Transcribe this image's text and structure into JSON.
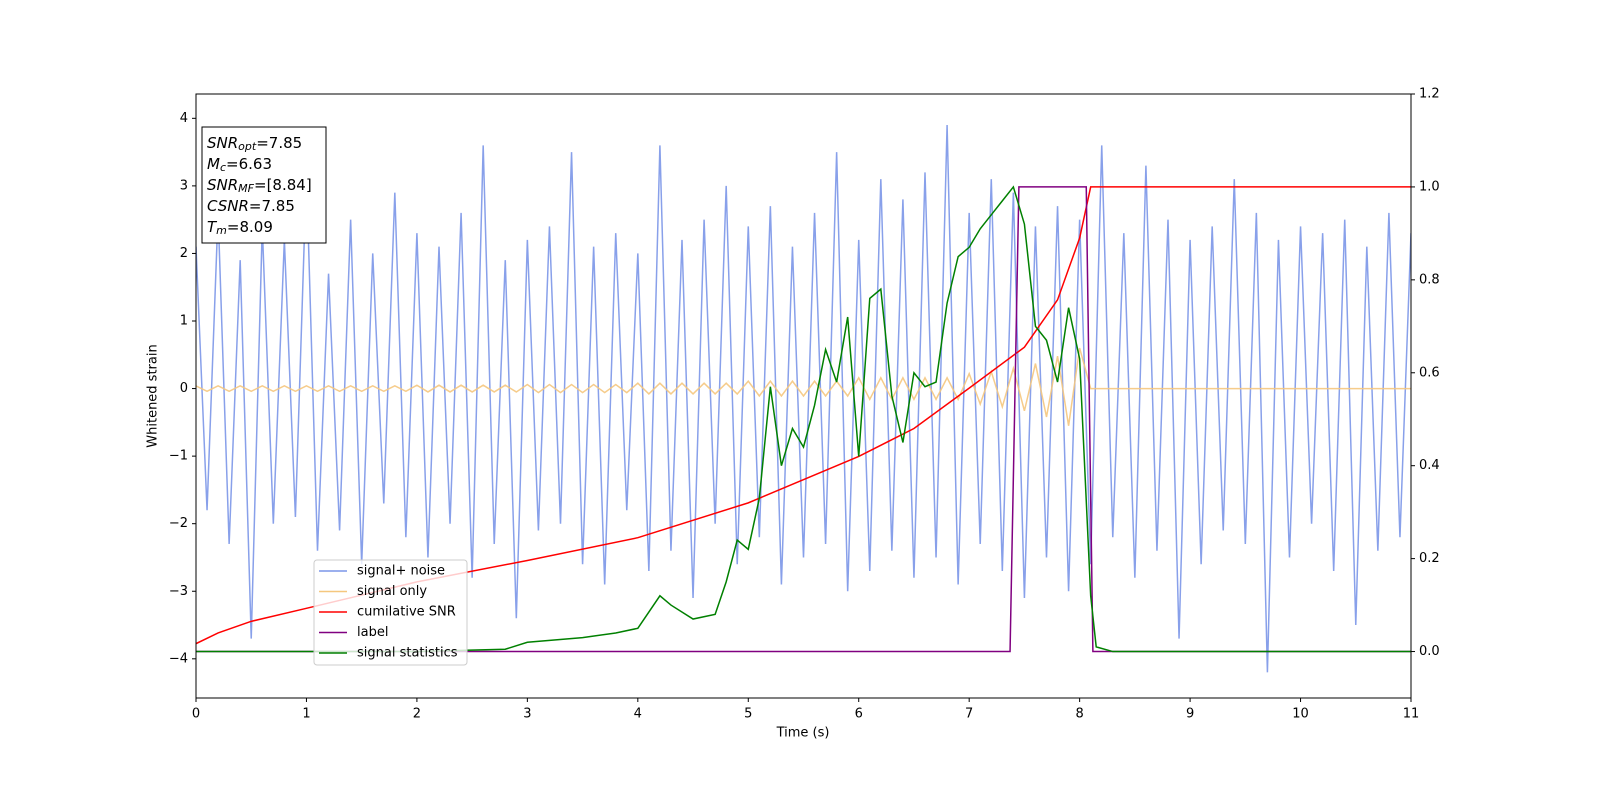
{
  "chart_data": {
    "type": "line",
    "xlabel": "Time (s)",
    "ylabel": "Whitened strain",
    "xlim": [
      0,
      11
    ],
    "xticks": [
      0,
      1,
      2,
      3,
      4,
      5,
      6,
      7,
      8,
      9,
      10,
      11
    ],
    "ylim": [
      -4.58,
      4.36
    ],
    "yticks": [
      {
        "value": -4,
        "label": "−4"
      },
      {
        "value": -3,
        "label": "−3"
      },
      {
        "value": -2,
        "label": "−2"
      },
      {
        "value": -1,
        "label": "−1"
      },
      0,
      1,
      2,
      3,
      4
    ],
    "y2lim": [
      -0.1,
      1.2
    ],
    "y2ticks": [
      {
        "value": 0,
        "label": "0.0"
      },
      {
        "value": 0.2,
        "label": "0.2"
      },
      {
        "value": 0.4,
        "label": "0.4"
      },
      {
        "value": 0.6,
        "label": "0.6"
      },
      {
        "value": 0.8,
        "label": "0.8"
      },
      {
        "value": 1,
        "label": "1.0"
      },
      {
        "value": 1.2,
        "label": "1.2"
      }
    ],
    "legend": "lower left",
    "annotation": [
      {
        "text": "SNR",
        "sub": "opt",
        "value": "=7.85"
      },
      {
        "text": "M",
        "sub": "c",
        "value": "=6.63"
      },
      {
        "text": "SNR",
        "sub": "MF",
        "value": "=[8.84]"
      },
      {
        "text": "CSNR",
        "value": "=7.85"
      },
      {
        "text": "T",
        "sub": "m",
        "value": "=8.09"
      }
    ],
    "series": [
      {
        "name": "signal+ noise",
        "color": "#7b96e8",
        "x": [
          0,
          0.1,
          0.2,
          0.3,
          0.4,
          0.5,
          0.6,
          0.7,
          0.8,
          0.9,
          1,
          1.1,
          1.2,
          1.3,
          1.4,
          1.5,
          1.6,
          1.7,
          1.8,
          1.9,
          2,
          2.1,
          2.2,
          2.3,
          2.4,
          2.5,
          2.6,
          2.7,
          2.8,
          2.9,
          3,
          3.1,
          3.2,
          3.3,
          3.4,
          3.5,
          3.6,
          3.7,
          3.8,
          3.9,
          4,
          4.1,
          4.2,
          4.3,
          4.4,
          4.5,
          4.6,
          4.7,
          4.8,
          4.9,
          5,
          5.1,
          5.2,
          5.3,
          5.4,
          5.5,
          5.6,
          5.7,
          5.8,
          5.9,
          6,
          6.1,
          6.2,
          6.3,
          6.4,
          6.5,
          6.6,
          6.7,
          6.8,
          6.9,
          7,
          7.1,
          7.2,
          7.3,
          7.4,
          7.5,
          7.6,
          7.7,
          7.8,
          7.9,
          8,
          8.1,
          8.2,
          8.3,
          8.4,
          8.5,
          8.6,
          8.7,
          8.8,
          8.9,
          9,
          9.1,
          9.2,
          9.3,
          9.4,
          9.5,
          9.6,
          9.7,
          9.8,
          9.9,
          10,
          10.1,
          10.2,
          10.3,
          10.4,
          10.5,
          10.6,
          10.7,
          10.8,
          10.9,
          11
        ],
        "values": [
          2.1,
          -1.8,
          2.6,
          -2.3,
          1.9,
          -3.7,
          2.4,
          -2.0,
          2.2,
          -1.9,
          3.2,
          -2.4,
          1.7,
          -2.1,
          2.5,
          -2.6,
          2.0,
          -1.7,
          2.9,
          -2.2,
          2.3,
          -2.5,
          2.1,
          -2.0,
          2.6,
          -2.8,
          3.6,
          -2.3,
          1.9,
          -3.4,
          2.2,
          -2.1,
          2.4,
          -2.0,
          3.5,
          -2.6,
          2.1,
          -2.9,
          2.3,
          -1.8,
          2.0,
          -2.7,
          3.6,
          -2.4,
          2.2,
          -3.1,
          2.5,
          -2.0,
          3.0,
          -2.6,
          2.4,
          -2.2,
          2.7,
          -2.9,
          2.1,
          -2.5,
          2.6,
          -2.3,
          3.5,
          -3.0,
          2.2,
          -2.7,
          3.1,
          -2.4,
          2.8,
          -2.8,
          3.2,
          -2.5,
          3.9,
          -2.9,
          2.6,
          -2.3,
          3.1,
          -2.7,
          2.9,
          -3.1,
          2.4,
          -2.5,
          2.7,
          -3.0,
          2.5,
          -2.6,
          3.6,
          -2.2,
          2.3,
          -2.8,
          3.3,
          -2.4,
          2.5,
          -3.7,
          2.2,
          -2.6,
          2.4,
          -2.1,
          3.1,
          -2.3,
          2.6,
          -4.2,
          2.2,
          -2.5,
          2.4,
          -2.0,
          2.3,
          -2.7,
          2.5,
          -3.5,
          2.1,
          -2.4,
          2.6,
          -2.2,
          2.3
        ]
      },
      {
        "name": "signal only",
        "color": "#f5c77e",
        "x": [
          0,
          0.1,
          0.2,
          0.3,
          0.4,
          0.5,
          0.6,
          0.7,
          0.8,
          0.9,
          1,
          1.1,
          1.2,
          1.3,
          1.4,
          1.5,
          1.6,
          1.7,
          1.8,
          1.9,
          2,
          2.1,
          2.2,
          2.3,
          2.4,
          2.5,
          2.6,
          2.7,
          2.8,
          2.9,
          3,
          3.1,
          3.2,
          3.3,
          3.4,
          3.5,
          3.6,
          3.7,
          3.8,
          3.9,
          4,
          4.1,
          4.2,
          4.3,
          4.4,
          4.5,
          4.6,
          4.7,
          4.8,
          4.9,
          5,
          5.1,
          5.2,
          5.3,
          5.4,
          5.5,
          5.6,
          5.7,
          5.8,
          5.9,
          6,
          6.1,
          6.2,
          6.3,
          6.4,
          6.5,
          6.6,
          6.7,
          6.8,
          6.9,
          7,
          7.1,
          7.2,
          7.3,
          7.4,
          7.5,
          7.6,
          7.7,
          7.8,
          7.9,
          8,
          8.1,
          8.2,
          8.3,
          8.4,
          8.5,
          8.6,
          8.7,
          8.8,
          8.9,
          9,
          9.1,
          9.2,
          9.3,
          9.4,
          9.5,
          9.6,
          9.7,
          9.8,
          9.9,
          10,
          10.1,
          10.2,
          10.3,
          10.4,
          10.5,
          10.6,
          10.7,
          10.8,
          10.9,
          11
        ],
        "values": [
          0.04,
          -0.04,
          0.04,
          -0.04,
          0.04,
          -0.04,
          0.04,
          -0.04,
          0.04,
          -0.04,
          0.04,
          -0.04,
          0.04,
          -0.04,
          0.04,
          -0.04,
          0.04,
          -0.04,
          0.04,
          -0.04,
          0.05,
          -0.05,
          0.05,
          -0.05,
          0.05,
          -0.05,
          0.05,
          -0.05,
          0.05,
          -0.05,
          0.06,
          -0.06,
          0.06,
          -0.06,
          0.06,
          -0.06,
          0.06,
          -0.06,
          0.06,
          -0.06,
          0.08,
          -0.08,
          0.08,
          -0.08,
          0.08,
          -0.08,
          0.08,
          -0.08,
          0.08,
          -0.08,
          0.11,
          -0.11,
          0.11,
          -0.11,
          0.11,
          -0.11,
          0.11,
          -0.11,
          0.11,
          -0.11,
          0.16,
          -0.16,
          0.16,
          -0.16,
          0.16,
          -0.16,
          0.16,
          -0.16,
          0.16,
          -0.16,
          0.22,
          -0.23,
          0.25,
          -0.27,
          0.3,
          -0.33,
          0.37,
          -0.42,
          0.48,
          -0.55,
          0.6,
          0,
          0,
          0,
          0,
          0,
          0,
          0,
          0,
          0,
          0,
          0,
          0,
          0,
          0,
          0,
          0,
          0,
          0,
          0,
          0,
          0,
          0,
          0,
          0,
          0,
          0,
          0,
          0,
          0,
          0
        ]
      },
      {
        "name": "cumilative SNR",
        "color": "#ff0000",
        "axis": "y2",
        "x": [
          0,
          0.2,
          0.5,
          1,
          2,
          3,
          4,
          5,
          6,
          6.5,
          7,
          7.5,
          7.8,
          8,
          8.1,
          11
        ],
        "values": [
          0.017,
          0.04,
          0.065,
          0.093,
          0.15,
          0.196,
          0.245,
          0.32,
          0.42,
          0.48,
          0.567,
          0.655,
          0.757,
          0.89,
          1,
          1
        ]
      },
      {
        "name": "label",
        "color": "#800080",
        "axis": "y2",
        "x": [
          0,
          7.37,
          7.45,
          8.06,
          8.12,
          11
        ],
        "values": [
          0,
          0,
          1,
          1,
          0,
          0
        ]
      },
      {
        "name": "signal statistics",
        "color": "#008000",
        "axis": "y2",
        "x": [
          0,
          2,
          2.8,
          3,
          3.5,
          3.8,
          4,
          4.2,
          4.3,
          4.5,
          4.7,
          4.8,
          4.9,
          5,
          5.1,
          5.2,
          5.3,
          5.4,
          5.5,
          5.6,
          5.7,
          5.8,
          5.9,
          6,
          6.1,
          6.2,
          6.3,
          6.4,
          6.5,
          6.6,
          6.7,
          6.8,
          6.9,
          7,
          7.1,
          7.2,
          7.3,
          7.4,
          7.5,
          7.6,
          7.7,
          7.8,
          7.9,
          8,
          8.1,
          8.15,
          8.3,
          11
        ],
        "values": [
          0,
          0,
          0.005,
          0.02,
          0.03,
          0.04,
          0.05,
          0.12,
          0.1,
          0.07,
          0.08,
          0.15,
          0.24,
          0.22,
          0.33,
          0.57,
          0.4,
          0.48,
          0.44,
          0.53,
          0.65,
          0.58,
          0.72,
          0.42,
          0.76,
          0.78,
          0.55,
          0.45,
          0.6,
          0.57,
          0.58,
          0.75,
          0.85,
          0.87,
          0.91,
          0.94,
          0.97,
          1,
          0.92,
          0.7,
          0.67,
          0.58,
          0.74,
          0.63,
          0.12,
          0.01,
          0,
          0
        ]
      }
    ]
  }
}
